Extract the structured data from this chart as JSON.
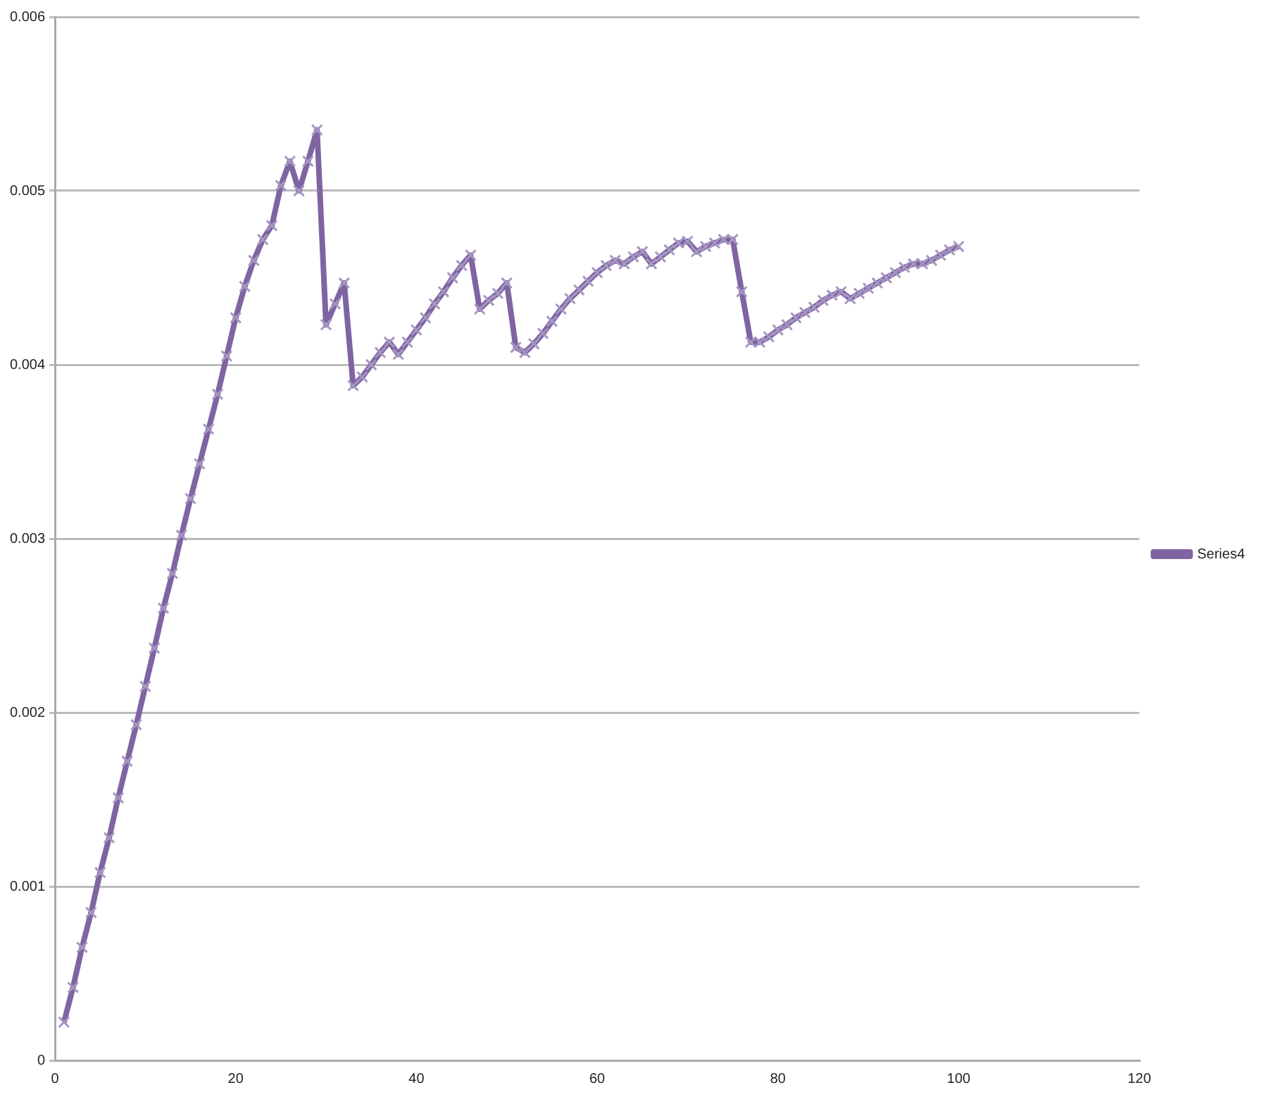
{
  "chart_data": {
    "type": "line",
    "x": [
      1,
      2,
      3,
      4,
      5,
      6,
      7,
      8,
      9,
      10,
      11,
      12,
      13,
      14,
      15,
      16,
      17,
      18,
      19,
      20,
      21,
      22,
      23,
      24,
      25,
      26,
      27,
      28,
      29,
      30,
      31,
      32,
      33,
      34,
      35,
      36,
      37,
      38,
      39,
      40,
      41,
      42,
      43,
      44,
      45,
      46,
      47,
      48,
      49,
      50,
      51,
      52,
      53,
      54,
      55,
      56,
      57,
      58,
      59,
      60,
      61,
      62,
      63,
      64,
      65,
      66,
      67,
      68,
      69,
      70,
      71,
      72,
      73,
      74,
      75,
      76,
      77,
      78,
      79,
      80,
      81,
      82,
      83,
      84,
      85,
      86,
      87,
      88,
      89,
      90,
      91,
      92,
      93,
      94,
      95,
      96,
      97,
      98,
      99,
      100
    ],
    "series": [
      {
        "name": "Series4",
        "color": "#8064a2",
        "values": [
          0.00022,
          0.00042,
          0.00065,
          0.00085,
          0.00108,
          0.00128,
          0.00151,
          0.00172,
          0.00193,
          0.00215,
          0.00237,
          0.0026,
          0.0028,
          0.00302,
          0.00323,
          0.00343,
          0.00363,
          0.00383,
          0.00405,
          0.00427,
          0.00445,
          0.0046,
          0.00472,
          0.0048,
          0.00503,
          0.00517,
          0.005,
          0.00517,
          0.00535,
          0.00423,
          0.00435,
          0.00447,
          0.00388,
          0.00393,
          0.004,
          0.00407,
          0.00413,
          0.00406,
          0.00413,
          0.0042,
          0.00427,
          0.00435,
          0.00442,
          0.0045,
          0.00457,
          0.00463,
          0.00432,
          0.00437,
          0.00441,
          0.00447,
          0.0041,
          0.00407,
          0.00412,
          0.00418,
          0.00425,
          0.00432,
          0.00438,
          0.00443,
          0.00448,
          0.00453,
          0.00457,
          0.0046,
          0.00458,
          0.00462,
          0.00465,
          0.00458,
          0.00462,
          0.00466,
          0.0047,
          0.00471,
          0.00465,
          0.00468,
          0.0047,
          0.00472,
          0.00472,
          0.00442,
          0.00413,
          0.00413,
          0.00416,
          0.0042,
          0.00423,
          0.00427,
          0.0043,
          0.00433,
          0.00437,
          0.0044,
          0.00442,
          0.00438,
          0.00441,
          0.00444,
          0.00447,
          0.0045,
          0.00453,
          0.00456,
          0.00458,
          0.00458,
          0.0046,
          0.00463,
          0.00466,
          0.00468
        ]
      }
    ],
    "xlim": [
      0,
      120
    ],
    "xticks": [
      0,
      20,
      40,
      60,
      80,
      100,
      120
    ],
    "ylim": [
      0,
      0.006
    ],
    "yticks": [
      0,
      0.001,
      0.002,
      0.003,
      0.004,
      0.005,
      0.006
    ],
    "grid": "y",
    "legend": "right",
    "marker": "cross",
    "line_style": "solid"
  }
}
